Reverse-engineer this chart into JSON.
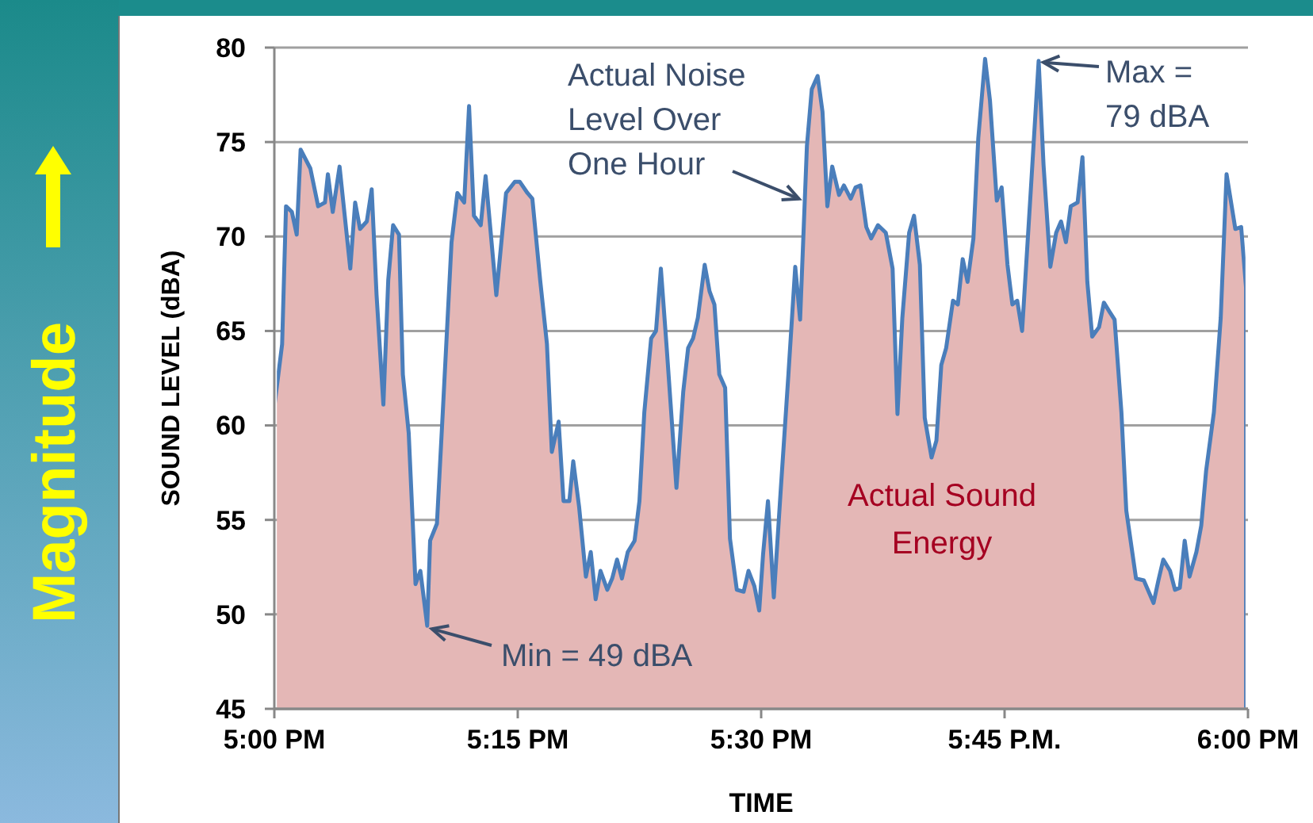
{
  "chart_data": {
    "type": "area",
    "xlabel": "TIME",
    "ylabel": "SOUND LEVEL (dBA)",
    "xlim": [
      17,
      18
    ],
    "xticks": [
      {
        "value": 17,
        "label": "5:00 PM"
      },
      {
        "value": 17.25,
        "label": "5:15 PM"
      },
      {
        "value": 17.5,
        "label": "5:30 PM"
      },
      {
        "value": 17.75,
        "label": "5:45 P.M."
      },
      {
        "value": 18,
        "label": "6:00 PM"
      }
    ],
    "ylim": [
      45,
      80
    ],
    "yticks": [
      45,
      50,
      55,
      60,
      65,
      70,
      75,
      80
    ],
    "grid": "y",
    "series": [
      {
        "color": "#4a7ebb",
        "x": [
          17,
          17.008,
          17.012,
          17.018,
          17.023,
          17.027,
          17.037,
          17.045,
          17.052,
          17.055,
          17.06,
          17.067,
          17.078,
          17.083,
          17.088,
          17.095,
          17.1,
          17.105,
          17.112,
          17.117,
          17.122,
          17.128,
          17.132,
          17.138,
          17.145,
          17.15,
          17.157,
          17.16,
          17.167,
          17.173,
          17.182,
          17.188,
          17.195,
          17.2,
          17.205,
          17.212,
          17.217,
          17.228,
          17.238,
          17.247,
          17.252,
          17.26,
          17.265,
          17.273,
          17.28,
          17.285,
          17.292,
          17.297,
          17.303,
          17.307,
          17.313,
          17.32,
          17.325,
          17.33,
          17.335,
          17.342,
          17.347,
          17.352,
          17.357,
          17.363,
          17.37,
          17.375,
          17.38,
          17.387,
          17.392,
          17.397,
          17.403,
          17.413,
          17.42,
          17.425,
          17.43,
          17.435,
          17.442,
          17.447,
          17.452,
          17.457,
          17.463,
          17.468,
          17.475,
          17.482,
          17.487,
          17.493,
          17.498,
          17.502,
          17.507,
          17.513,
          17.52,
          17.528,
          17.535,
          17.54,
          17.547,
          17.552,
          17.558,
          17.563,
          17.568,
          17.573,
          17.58,
          17.585,
          17.592,
          17.597,
          17.602,
          17.608,
          17.613,
          17.62,
          17.628,
          17.635,
          17.64,
          17.645,
          17.652,
          17.657,
          17.663,
          17.668,
          17.675,
          17.68,
          17.685,
          17.69,
          17.697,
          17.702,
          17.707,
          17.712,
          17.718,
          17.723,
          17.73,
          17.735,
          17.742,
          17.747,
          17.753,
          17.758,
          17.763,
          17.768,
          17.777,
          17.785,
          17.79,
          17.797,
          17.803,
          17.808,
          17.813,
          17.818,
          17.825,
          17.83,
          17.835,
          17.84,
          17.847,
          17.852,
          17.858,
          17.863,
          17.87,
          17.875,
          17.88,
          17.885,
          17.893,
          17.898,
          17.903,
          17.908,
          17.913,
          17.92,
          17.925,
          17.93,
          17.935,
          17.94,
          17.947,
          17.952,
          17.957,
          17.965,
          17.972,
          17.978,
          17.987,
          17.993,
          17.998
        ],
        "values": [
          61.0,
          64.3,
          71.6,
          71.3,
          70.1,
          74.6,
          73.6,
          71.6,
          71.8,
          73.3,
          71.3,
          73.7,
          68.3,
          71.8,
          70.4,
          70.8,
          72.5,
          66.9,
          61.1,
          67.7,
          70.6,
          70.1,
          62.7,
          59.6,
          51.6,
          52.3,
          49.4,
          53.9,
          54.8,
          60.7,
          69.7,
          72.3,
          71.8,
          76.9,
          71.1,
          70.6,
          73.2,
          66.9,
          72.3,
          72.9,
          72.9,
          72.3,
          72.0,
          67.7,
          64.3,
          58.6,
          60.2,
          56.0,
          56.0,
          58.1,
          55.7,
          52.0,
          53.3,
          50.8,
          52.3,
          51.3,
          51.9,
          52.9,
          51.9,
          53.3,
          53.9,
          56.0,
          60.7,
          64.6,
          65.0,
          68.3,
          64.1,
          56.7,
          61.8,
          64.1,
          64.6,
          65.7,
          68.5,
          67.1,
          66.4,
          62.7,
          62.0,
          54.0,
          51.3,
          51.2,
          52.3,
          51.5,
          50.2,
          53.2,
          56.0,
          50.9,
          56.5,
          62.7,
          68.4,
          65.6,
          74.8,
          77.8,
          78.5,
          76.6,
          71.6,
          73.7,
          72.2,
          72.7,
          72.0,
          72.6,
          72.7,
          70.5,
          69.9,
          70.6,
          70.2,
          68.3,
          60.6,
          65.7,
          70.2,
          71.1,
          68.5,
          60.4,
          58.3,
          59.2,
          63.2,
          64.1,
          66.6,
          66.4,
          68.8,
          67.6,
          69.9,
          75.2,
          79.4,
          77.2,
          71.9,
          72.6,
          68.5,
          66.4,
          66.6,
          65.0,
          72.5,
          79.3,
          73.8,
          68.4,
          70.2,
          70.8,
          69.7,
          71.6,
          71.8,
          74.2,
          67.6,
          64.7,
          65.2,
          66.5,
          66.0,
          65.6,
          60.7,
          55.5,
          53.7,
          51.9,
          51.8,
          51.2,
          50.6,
          51.8,
          52.9,
          52.3,
          51.3,
          51.4,
          53.9,
          52.0,
          53.3,
          54.7,
          57.6,
          60.7,
          65.7,
          73.3,
          70.4,
          70.5,
          67.3
        ]
      }
    ],
    "annotations": [
      {
        "text": "Min = 49 dBA",
        "x": 17.157,
        "y": 49.4
      },
      {
        "text": "Max = 79 dBA",
        "x": 17.785,
        "y": 79.3
      },
      {
        "text": "Actual Noise Level Over One Hour",
        "x": 17.542,
        "y": 72.0
      },
      "Actual Sound Energy",
      "Magnitude"
    ]
  }
}
